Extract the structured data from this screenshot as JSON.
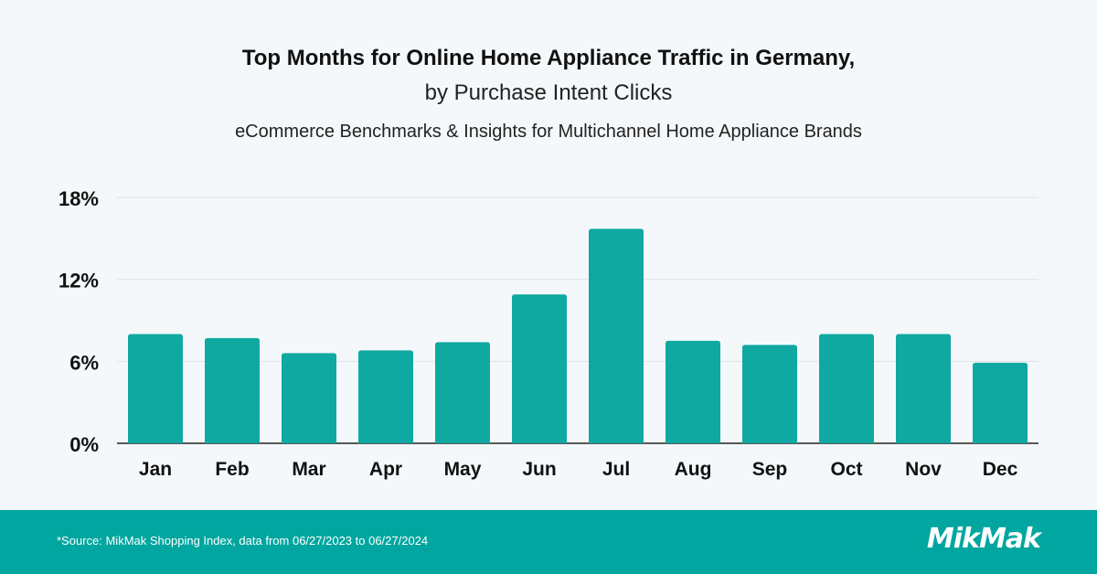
{
  "header": {
    "title": "Top Months for Online Home Appliance Traffic in Germany,",
    "subtitle": "by Purchase Intent Clicks",
    "subtitle2": "eCommerce Benchmarks & Insights for Multichannel Home Appliance Brands"
  },
  "chart_data": {
    "type": "bar",
    "title": "Top Months for Online Home Appliance Traffic in Germany, by Purchase Intent Clicks",
    "xlabel": "",
    "ylabel": "",
    "categories": [
      "Jan",
      "Feb",
      "Mar",
      "Apr",
      "May",
      "Jun",
      "Jul",
      "Aug",
      "Sep",
      "Oct",
      "Nov",
      "Dec"
    ],
    "values": [
      8.0,
      7.7,
      6.6,
      6.8,
      7.4,
      10.9,
      15.7,
      7.5,
      7.2,
      8.0,
      8.0,
      5.9
    ],
    "unit": "%",
    "ylim": [
      0,
      18
    ],
    "yticks": [
      "0%",
      "6%",
      "12%",
      "18%"
    ],
    "ytick_values": [
      0,
      6,
      12,
      18
    ],
    "grid": true,
    "bar_color": "#0fa9a1"
  },
  "footer": {
    "source": "*Source: MikMak Shopping Index, data from 06/27/2023 to 06/27/2024",
    "logo": "MikMak"
  }
}
